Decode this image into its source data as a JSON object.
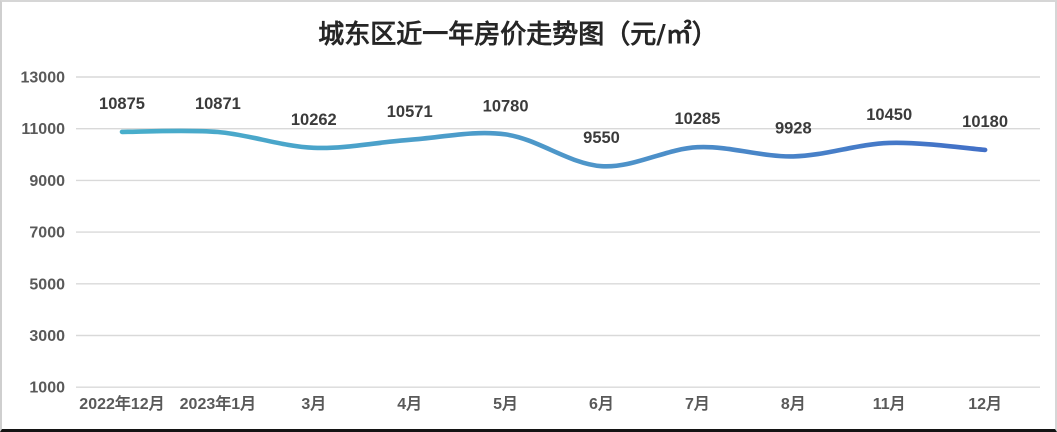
{
  "chart_data": {
    "type": "line",
    "title": "城东区近一年房价走势图（元/㎡）",
    "categories": [
      "2022年12月",
      "2023年1月",
      "3月",
      "4月",
      "5月",
      "6月",
      "7月",
      "8月",
      "11月",
      "12月"
    ],
    "values": [
      10875,
      10871,
      10262,
      10571,
      10780,
      9550,
      10285,
      9928,
      10450,
      10180
    ],
    "xlabel": "",
    "ylabel": "",
    "ylim": [
      1000,
      13000
    ],
    "y_ticks": [
      13000,
      11000,
      9000,
      7000,
      5000,
      3000,
      1000
    ],
    "grid": "horizontal-only",
    "legend": "none",
    "smooth": true,
    "data_labels": true,
    "line_gradient_start": "#48AECB",
    "line_gradient_mid": "#4E95C9",
    "line_gradient_end": "#4270C7",
    "gridline_color": "#d9d9d9",
    "axis_label_color": "#595959",
    "data_label_color": "#3b3b3b",
    "title_color": "#262626"
  }
}
